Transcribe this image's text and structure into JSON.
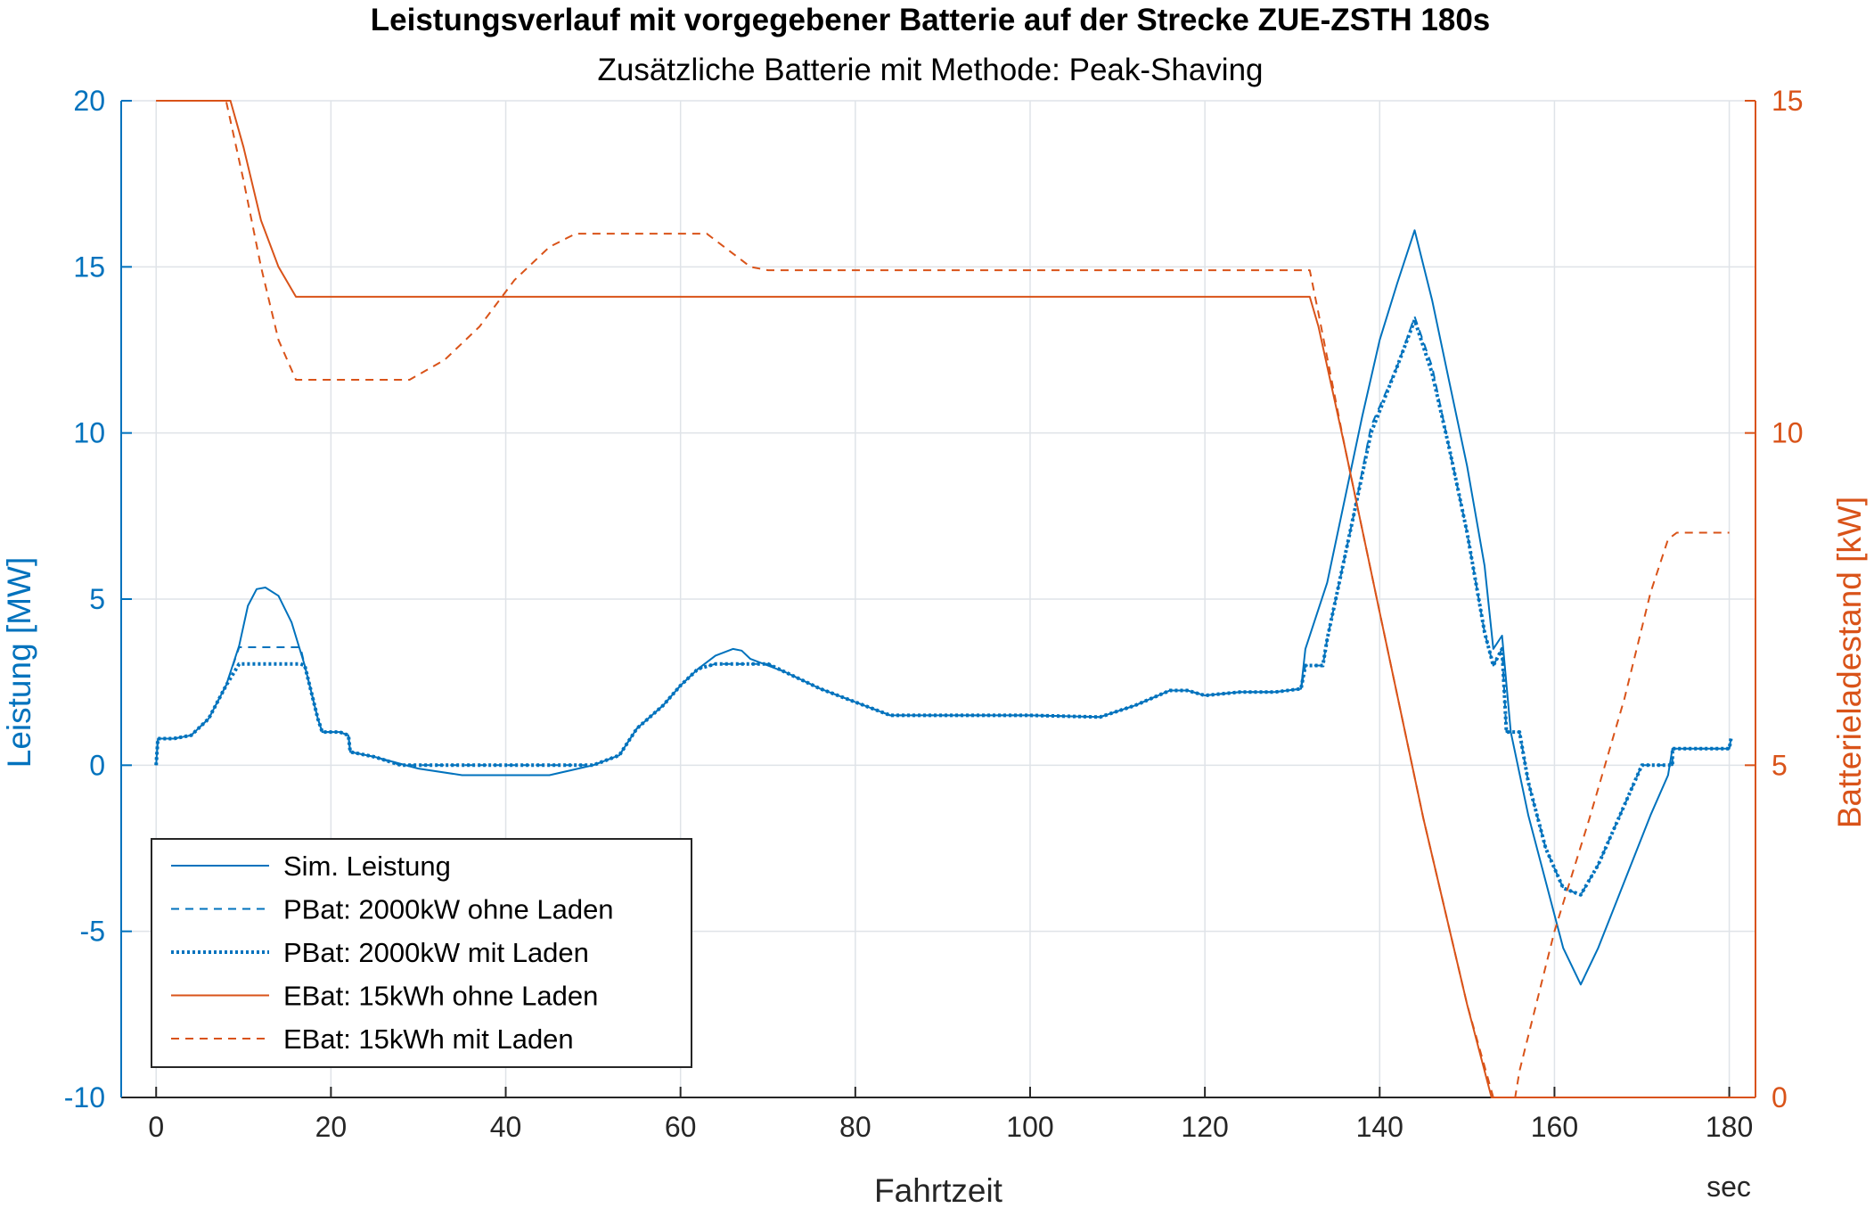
{
  "chart_data": {
    "type": "line",
    "title": "Leistungsverlauf mit vorgegebener Batterie auf der Strecke ZUE-ZSTH 180s",
    "subtitle": "Zusätzliche Batterie mit Methode: Peak-Shaving",
    "xlabel": "Fahrtzeit",
    "xunit": "sec",
    "ylabel_left": "Leistung [MW]",
    "ylabel_right": "Batterieladestand [kW]",
    "xlim": [
      -4,
      183
    ],
    "ylim_left": [
      -10,
      20
    ],
    "ylim_right": [
      0,
      15
    ],
    "x_ticks": [
      "0",
      "20",
      "40",
      "60",
      "80",
      "100",
      "120",
      "140",
      "160",
      "180"
    ],
    "y_ticks_left": [
      "-10",
      "-5",
      "0",
      "5",
      "10",
      "15",
      "20"
    ],
    "y_ticks_right": [
      "0",
      "5",
      "10",
      "15"
    ],
    "grid": true,
    "legend_position": "bottom-left",
    "colors": {
      "blue": "#0072BD",
      "orange": "#D95319",
      "grid": "#dfe3e8"
    },
    "series": [
      {
        "name": "Sim. Leistung",
        "axis": "left",
        "color": "#0072BD",
        "style": "solid",
        "points": [
          [
            0,
            0
          ],
          [
            0.2,
            0.8
          ],
          [
            2,
            0.8
          ],
          [
            4,
            0.9
          ],
          [
            6,
            1.4
          ],
          [
            8,
            2.4
          ],
          [
            9.5,
            3.6
          ],
          [
            10.5,
            4.8
          ],
          [
            11.5,
            5.3
          ],
          [
            12.5,
            5.35
          ],
          [
            14,
            5.1
          ],
          [
            15.5,
            4.3
          ],
          [
            17,
            3.0
          ],
          [
            18.5,
            1.4
          ],
          [
            19,
            1.0
          ],
          [
            21,
            1.0
          ],
          [
            22,
            0.9
          ],
          [
            22.2,
            0.4
          ],
          [
            25,
            0.25
          ],
          [
            30,
            -0.1
          ],
          [
            35,
            -0.3
          ],
          [
            45,
            -0.3
          ],
          [
            50,
            0.0
          ],
          [
            53,
            0.3
          ],
          [
            55,
            1.1
          ],
          [
            58,
            1.8
          ],
          [
            60,
            2.4
          ],
          [
            62,
            2.9
          ],
          [
            64,
            3.3
          ],
          [
            66,
            3.5
          ],
          [
            67,
            3.45
          ],
          [
            68,
            3.2
          ],
          [
            72,
            2.8
          ],
          [
            76,
            2.3
          ],
          [
            80,
            1.9
          ],
          [
            84,
            1.5
          ],
          [
            90,
            1.5
          ],
          [
            100,
            1.5
          ],
          [
            108,
            1.45
          ],
          [
            112,
            1.8
          ],
          [
            116,
            2.25
          ],
          [
            118,
            2.25
          ],
          [
            120,
            2.1
          ],
          [
            124,
            2.2
          ],
          [
            128,
            2.2
          ],
          [
            131,
            2.3
          ],
          [
            131.5,
            3.5
          ],
          [
            134,
            5.5
          ],
          [
            138,
            10.5
          ],
          [
            140,
            12.8
          ],
          [
            142,
            14.5
          ],
          [
            144,
            16.1
          ],
          [
            146,
            14.0
          ],
          [
            148,
            11.5
          ],
          [
            150,
            9.0
          ],
          [
            152,
            6.0
          ],
          [
            153,
            3.5
          ],
          [
            154,
            3.9
          ],
          [
            155,
            1.0
          ],
          [
            157,
            -1.5
          ],
          [
            159,
            -3.5
          ],
          [
            161,
            -5.5
          ],
          [
            163,
            -6.6
          ],
          [
            165,
            -5.5
          ],
          [
            168,
            -3.5
          ],
          [
            171,
            -1.5
          ],
          [
            173,
            -0.3
          ],
          [
            173.5,
            0.5
          ],
          [
            176,
            0.5
          ],
          [
            180,
            0.5
          ],
          [
            180.2,
            0.8
          ]
        ]
      },
      {
        "name": "PBat: 2000kW ohne Laden",
        "axis": "left",
        "color": "#0072BD",
        "style": "dashed",
        "points": [
          [
            0,
            0
          ],
          [
            0.2,
            0.8
          ],
          [
            2,
            0.8
          ],
          [
            4,
            0.9
          ],
          [
            6,
            1.4
          ],
          [
            8,
            2.4
          ],
          [
            9.5,
            3.55
          ],
          [
            16.5,
            3.55
          ],
          [
            17,
            3.0
          ],
          [
            18.5,
            1.4
          ],
          [
            19,
            1.0
          ],
          [
            21,
            1.0
          ],
          [
            22,
            0.9
          ],
          [
            22.2,
            0.4
          ],
          [
            25,
            0.25
          ],
          [
            28,
            0
          ],
          [
            50,
            0
          ],
          [
            53,
            0.3
          ],
          [
            55,
            1.1
          ],
          [
            58,
            1.8
          ],
          [
            60,
            2.4
          ],
          [
            62,
            2.9
          ],
          [
            64,
            3.05
          ],
          [
            70,
            3.05
          ],
          [
            72,
            2.8
          ],
          [
            76,
            2.3
          ],
          [
            80,
            1.9
          ],
          [
            84,
            1.5
          ],
          [
            90,
            1.5
          ],
          [
            100,
            1.5
          ],
          [
            108,
            1.45
          ],
          [
            112,
            1.8
          ],
          [
            116,
            2.25
          ],
          [
            118,
            2.25
          ],
          [
            120,
            2.1
          ],
          [
            124,
            2.2
          ],
          [
            128,
            2.2
          ],
          [
            131,
            2.3
          ],
          [
            131.5,
            3.0
          ],
          [
            133.5,
            3.0
          ],
          [
            134,
            3.8
          ],
          [
            137,
            7.5
          ],
          [
            139,
            10.2
          ],
          [
            142,
            12.0
          ],
          [
            144,
            13.5
          ],
          [
            146,
            12.0
          ],
          [
            148,
            9.5
          ],
          [
            150,
            7.0
          ],
          [
            152,
            4.0
          ],
          [
            153,
            3.0
          ],
          [
            154,
            3.5
          ],
          [
            154.5,
            1.0
          ],
          [
            156,
            1.0
          ],
          [
            157,
            -0.5
          ],
          [
            159,
            -2.5
          ],
          [
            161,
            -3.7
          ],
          [
            163,
            -3.9
          ],
          [
            165,
            -3.0
          ],
          [
            168,
            -1.2
          ],
          [
            170,
            0
          ],
          [
            173.5,
            0
          ],
          [
            173.5,
            0.5
          ],
          [
            176,
            0.5
          ],
          [
            180,
            0.5
          ],
          [
            180.2,
            0.8
          ]
        ]
      },
      {
        "name": "PBat: 2000kW mit Laden",
        "axis": "left",
        "color": "#0072BD",
        "style": "dotted",
        "points": [
          [
            0,
            0
          ],
          [
            0.2,
            0.8
          ],
          [
            2,
            0.8
          ],
          [
            4,
            0.9
          ],
          [
            6,
            1.4
          ],
          [
            8,
            2.4
          ],
          [
            9.5,
            3.05
          ],
          [
            16.5,
            3.05
          ],
          [
            17,
            3.0
          ],
          [
            18.5,
            1.4
          ],
          [
            19,
            1.0
          ],
          [
            21,
            1.0
          ],
          [
            22,
            0.9
          ],
          [
            22.2,
            0.4
          ],
          [
            25,
            0.25
          ],
          [
            28,
            0
          ],
          [
            50,
            0
          ],
          [
            53,
            0.3
          ],
          [
            55,
            1.1
          ],
          [
            58,
            1.8
          ],
          [
            60,
            2.4
          ],
          [
            62,
            2.9
          ],
          [
            64,
            3.05
          ],
          [
            70,
            3.05
          ],
          [
            72,
            2.8
          ],
          [
            76,
            2.3
          ],
          [
            80,
            1.9
          ],
          [
            84,
            1.5
          ],
          [
            90,
            1.5
          ],
          [
            100,
            1.5
          ],
          [
            108,
            1.45
          ],
          [
            112,
            1.8
          ],
          [
            116,
            2.25
          ],
          [
            118,
            2.25
          ],
          [
            120,
            2.1
          ],
          [
            124,
            2.2
          ],
          [
            128,
            2.2
          ],
          [
            131,
            2.3
          ],
          [
            131.5,
            3.0
          ],
          [
            133.5,
            3.0
          ],
          [
            134,
            3.8
          ],
          [
            137,
            7.5
          ],
          [
            139,
            10.0
          ],
          [
            142,
            12.0
          ],
          [
            144,
            13.4
          ],
          [
            146,
            11.8
          ],
          [
            148,
            9.5
          ],
          [
            150,
            7.0
          ],
          [
            152,
            4.0
          ],
          [
            153,
            3.0
          ],
          [
            154,
            3.5
          ],
          [
            154.5,
            1.0
          ],
          [
            156,
            1.0
          ],
          [
            157,
            -0.5
          ],
          [
            159,
            -2.5
          ],
          [
            161,
            -3.7
          ],
          [
            163,
            -3.9
          ],
          [
            165,
            -3.0
          ],
          [
            168,
            -1.2
          ],
          [
            170,
            0
          ],
          [
            173.5,
            0
          ],
          [
            173.5,
            0.5
          ],
          [
            176,
            0.5
          ],
          [
            180,
            0.5
          ],
          [
            180.2,
            0.8
          ]
        ]
      },
      {
        "name": "EBat: 15kWh ohne Laden",
        "axis": "right",
        "color": "#D95319",
        "style": "solid",
        "points": [
          [
            0,
            15
          ],
          [
            8.5,
            15
          ],
          [
            10,
            14.3
          ],
          [
            12,
            13.2
          ],
          [
            14,
            12.5
          ],
          [
            16,
            12.05
          ],
          [
            20,
            12.05
          ],
          [
            60,
            12.05
          ],
          [
            132,
            12.05
          ],
          [
            133,
            11.6
          ],
          [
            136,
            9.8
          ],
          [
            140,
            7.3
          ],
          [
            145,
            4.2
          ],
          [
            150,
            1.4
          ],
          [
            152.8,
            0
          ],
          [
            183,
            0
          ]
        ]
      },
      {
        "name": "EBat: 15kWh mit Laden",
        "axis": "right",
        "color": "#D95319",
        "style": "dashed",
        "points": [
          [
            0,
            15
          ],
          [
            8,
            15
          ],
          [
            10,
            13.8
          ],
          [
            12,
            12.5
          ],
          [
            14,
            11.4
          ],
          [
            16,
            10.8
          ],
          [
            29,
            10.8
          ],
          [
            33,
            11.1
          ],
          [
            37,
            11.6
          ],
          [
            41,
            12.3
          ],
          [
            45,
            12.8
          ],
          [
            48,
            13.0
          ],
          [
            63,
            13.0
          ],
          [
            66,
            12.7
          ],
          [
            68,
            12.5
          ],
          [
            70,
            12.45
          ],
          [
            132,
            12.45
          ],
          [
            133,
            11.8
          ],
          [
            136,
            9.8
          ],
          [
            140,
            7.3
          ],
          [
            145,
            4.2
          ],
          [
            150,
            1.4
          ],
          [
            153,
            0
          ],
          [
            155.5,
            0
          ],
          [
            156,
            0.4
          ],
          [
            160,
            2.5
          ],
          [
            164,
            4.2
          ],
          [
            168,
            6.0
          ],
          [
            171,
            7.6
          ],
          [
            173,
            8.4
          ],
          [
            174,
            8.5
          ],
          [
            180,
            8.5
          ]
        ]
      }
    ]
  }
}
